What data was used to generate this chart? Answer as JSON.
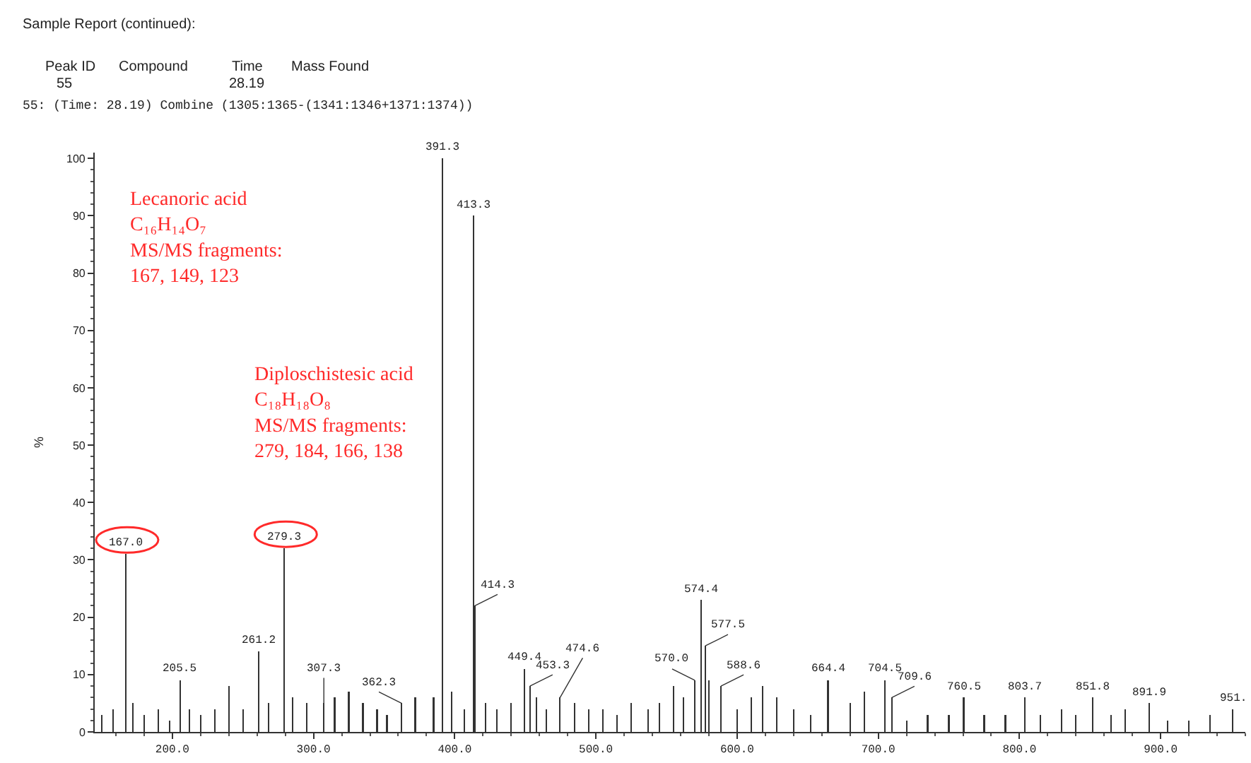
{
  "chart_data": {
    "type": "bar",
    "ylabel": "%",
    "x": [
      150,
      158,
      167.0,
      172,
      180,
      190,
      198,
      205.5,
      212,
      220,
      230,
      240,
      250,
      261.2,
      268,
      279.3,
      285,
      295,
      307.3,
      315,
      325,
      335,
      345,
      352,
      362.3,
      372,
      385,
      391.3,
      398,
      407,
      413.3,
      414.3,
      422,
      430,
      440,
      449.4,
      453.3,
      458,
      465,
      474.6,
      485,
      495,
      505,
      515,
      525,
      537,
      545,
      555,
      562,
      570.0,
      574.4,
      577.5,
      580,
      588.6,
      600,
      610,
      618,
      628,
      640,
      652,
      664.4,
      680,
      690,
      704.5,
      709.6,
      720,
      735,
      750,
      760.5,
      775,
      790,
      803.7,
      815,
      830,
      840,
      851.8,
      865,
      875,
      891.9,
      905,
      920,
      935,
      951.0
    ],
    "values": [
      3,
      4,
      31,
      5,
      3,
      4,
      2,
      9,
      4,
      3,
      4,
      8,
      4,
      14,
      5,
      32,
      6,
      5,
      5,
      6,
      7,
      5,
      4,
      3,
      5,
      6,
      6,
      100,
      7,
      4,
      90,
      22,
      5,
      4,
      5,
      11,
      8,
      6,
      4,
      6,
      5,
      4,
      4,
      3,
      5,
      4,
      5,
      8,
      6,
      9,
      23,
      15,
      9,
      8,
      4,
      6,
      8,
      6,
      4,
      3,
      9,
      5,
      7,
      9,
      6,
      2,
      3,
      3,
      6,
      3,
      3,
      6,
      3,
      4,
      3,
      6,
      3,
      4,
      5,
      2,
      2,
      3,
      4
    ],
    "color": "#333333",
    "xlim": [
      145,
      960
    ],
    "ylim": [
      0,
      101
    ],
    "xticks": [
      {
        "value": 200,
        "label": "200.0"
      },
      {
        "value": 300,
        "label": "300.0"
      },
      {
        "value": 400,
        "label": "400.0"
      },
      {
        "value": 500,
        "label": "500.0"
      },
      {
        "value": 600,
        "label": "600.0"
      },
      {
        "value": 700,
        "label": "700.0"
      },
      {
        "value": 800,
        "label": "800.0"
      },
      {
        "value": 900,
        "label": "900.0"
      }
    ],
    "yticks": [
      0,
      10,
      20,
      30,
      40,
      50,
      60,
      70,
      80,
      90,
      100
    ],
    "grid": false,
    "annotations": [
      "Sample Report (continued):",
      "Peak ID",
      "Compound",
      "Time",
      "Mass Found",
      "55",
      "28.19",
      "55: (Time: 28.19) Combine (1305:1365-(1341:1346+1371:1374))",
      "Lecanoric acid\nC₁₆H₁₄O₇\nMS/MS fragments:\n167, 149, 123",
      "Diploschistesic acid\nC₁₈H₁₈O₈\nMS/MS fragments:\n279, 184, 166, 138",
      {
        "text": "167.0",
        "x": 167.0,
        "y": 31
      },
      {
        "text": "205.5",
        "x": 205.5,
        "y": 9
      },
      {
        "text": "261.2",
        "x": 261.2,
        "y": 14
      },
      {
        "text": "279.3",
        "x": 279.3,
        "y": 32
      },
      {
        "text": "307.3",
        "x": 307.3,
        "y": 5
      },
      {
        "text": "362.3",
        "x": 362.3,
        "y": 5
      },
      {
        "text": "391.3",
        "x": 391.3,
        "y": 100
      },
      {
        "text": "413.3",
        "x": 413.3,
        "y": 90
      },
      {
        "text": "414.3",
        "x": 414.3,
        "y": 22
      },
      {
        "text": "449.4",
        "x": 449.4,
        "y": 11
      },
      {
        "text": "453.3",
        "x": 453.3,
        "y": 8
      },
      {
        "text": "474.6",
        "x": 474.6,
        "y": 6
      },
      {
        "text": "570.0",
        "x": 570.0,
        "y": 9
      },
      {
        "text": "574.4",
        "x": 574.4,
        "y": 23
      },
      {
        "text": "577.5",
        "x": 577.5,
        "y": 15
      },
      {
        "text": "588.6",
        "x": 588.6,
        "y": 8
      },
      {
        "text": "664.4",
        "x": 664.4,
        "y": 9
      },
      {
        "text": "704.5",
        "x": 704.5,
        "y": 9
      },
      {
        "text": "709.6",
        "x": 709.6,
        "y": 6
      },
      {
        "text": "760.5",
        "x": 760.5,
        "y": 6
      },
      {
        "text": "803.7",
        "x": 803.7,
        "y": 6
      },
      {
        "text": "851.8",
        "x": 851.8,
        "y": 6
      },
      {
        "text": "891.9",
        "x": 891.9,
        "y": 5
      },
      {
        "text": "951.",
        "x": 951.0,
        "y": 4
      }
    ]
  }
}
